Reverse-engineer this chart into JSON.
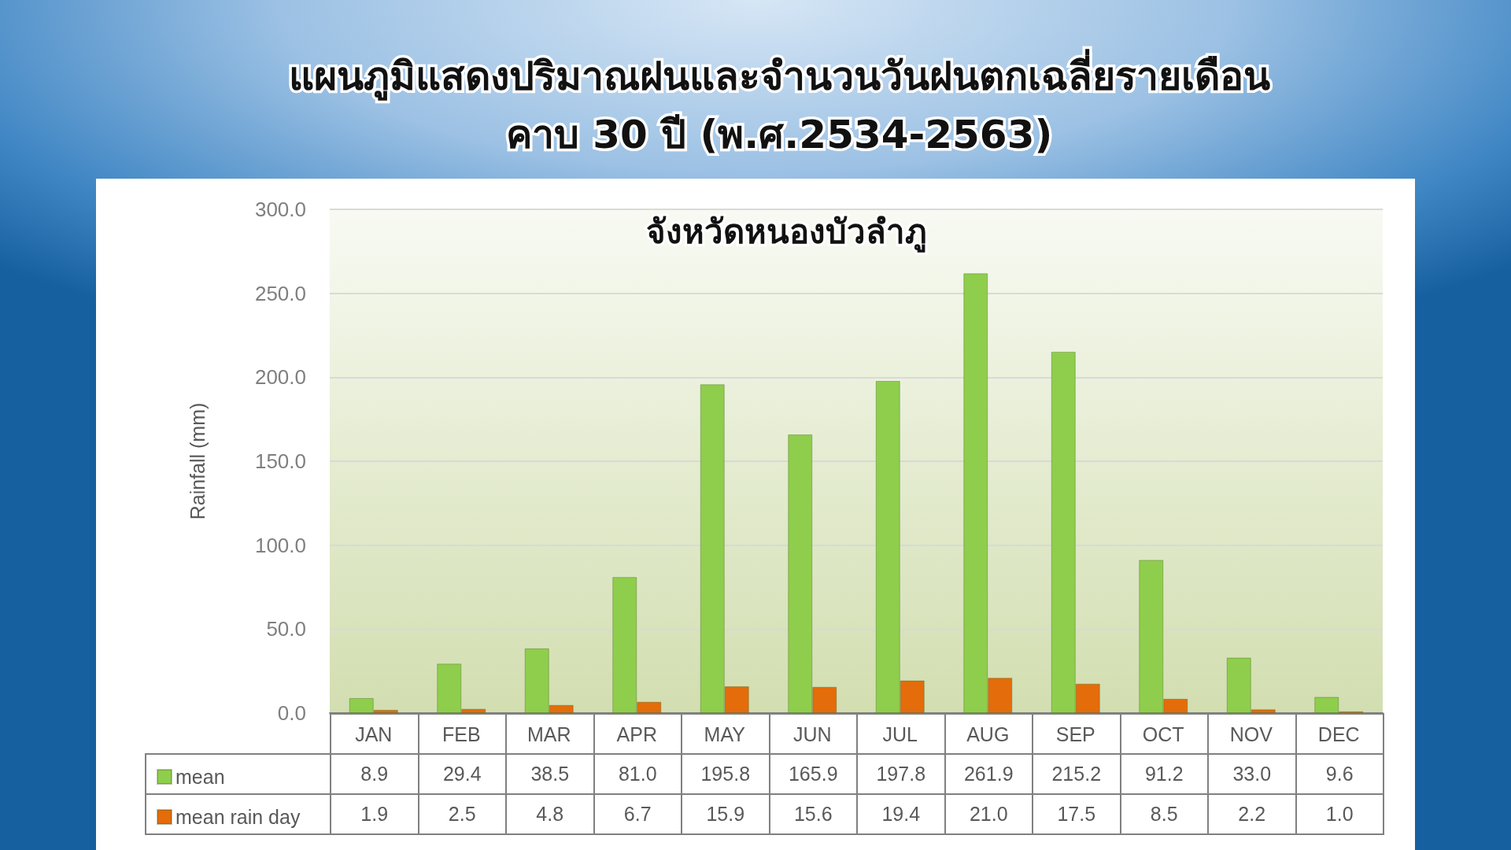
{
  "chart_data": {
    "type": "bar",
    "title": "แผนภูมิแสดงปริมาณฝนและจำนวนวันฝนตกเฉลี่ยรายเดือน\nคาบ 30 ปี (พ.ศ.2534-2563)",
    "subtitle": "จังหวัดหนองบัวลำภู",
    "ylabel": "Rainfall (mm)",
    "categories": [
      "JAN",
      "FEB",
      "MAR",
      "APR",
      "MAY",
      "JUN",
      "JUL",
      "AUG",
      "SEP",
      "OCT",
      "NOV",
      "DEC"
    ],
    "series": [
      {
        "name": "mean",
        "color": "#8fce4c",
        "values": [
          8.9,
          29.4,
          38.5,
          81.0,
          195.8,
          165.9,
          197.8,
          261.9,
          215.2,
          91.2,
          33.0,
          9.6
        ],
        "value_labels": [
          "8.9",
          "29.4",
          "38.5",
          "81.0",
          "195.8",
          "165.9",
          "197.8",
          "261.9",
          "215.2",
          "91.2",
          "33.0",
          "9.6"
        ]
      },
      {
        "name": "mean rain day",
        "color": "#e46c0a",
        "values": [
          1.9,
          2.5,
          4.8,
          6.7,
          15.9,
          15.6,
          19.4,
          21.0,
          17.5,
          8.5,
          2.2,
          1.0
        ],
        "value_labels": [
          "1.9",
          "2.5",
          "4.8",
          "6.7",
          "15.9",
          "15.6",
          "19.4",
          "21.0",
          "17.5",
          "8.5",
          "2.2",
          "1.0"
        ]
      }
    ],
    "ylim": [
      0,
      300
    ],
    "yticks": [
      {
        "value": 0,
        "label": "0.0"
      },
      {
        "value": 50,
        "label": "50.0"
      },
      {
        "value": 100,
        "label": "100.0"
      },
      {
        "value": 150,
        "label": "150.0"
      },
      {
        "value": 200,
        "label": "200.0"
      },
      {
        "value": 250,
        "label": "250.0"
      },
      {
        "value": 300,
        "label": "300.0"
      }
    ],
    "grid": "y",
    "legend": "bottom left"
  }
}
